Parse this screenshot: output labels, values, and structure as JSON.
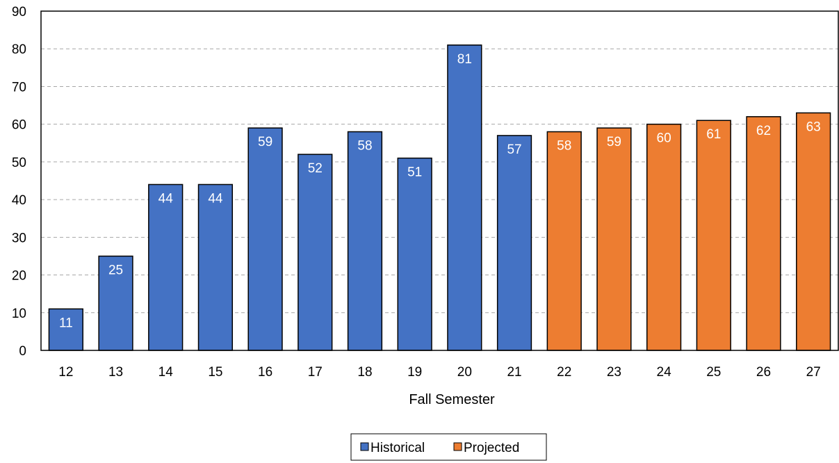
{
  "chart_data": {
    "type": "bar",
    "categories": [
      "12",
      "13",
      "14",
      "15",
      "16",
      "17",
      "18",
      "19",
      "20",
      "21",
      "22",
      "23",
      "24",
      "25",
      "26",
      "27"
    ],
    "series": [
      {
        "name": "Historical",
        "color": "#4472C4",
        "values": [
          11,
          25,
          44,
          44,
          59,
          52,
          58,
          51,
          81,
          57,
          null,
          null,
          null,
          null,
          null,
          null
        ]
      },
      {
        "name": "Projected",
        "color": "#ED7D31",
        "values": [
          null,
          null,
          null,
          null,
          null,
          null,
          null,
          null,
          null,
          null,
          58,
          59,
          60,
          61,
          62,
          63
        ]
      }
    ],
    "title": "",
    "xlabel": "Fall Semester",
    "ylabel": "",
    "ylim": [
      0,
      90
    ],
    "yticks": [
      0,
      10,
      20,
      30,
      40,
      50,
      60,
      70,
      80,
      90
    ],
    "grid": "horizontal-dashed",
    "data_labels": true,
    "legend_position": "bottom"
  }
}
